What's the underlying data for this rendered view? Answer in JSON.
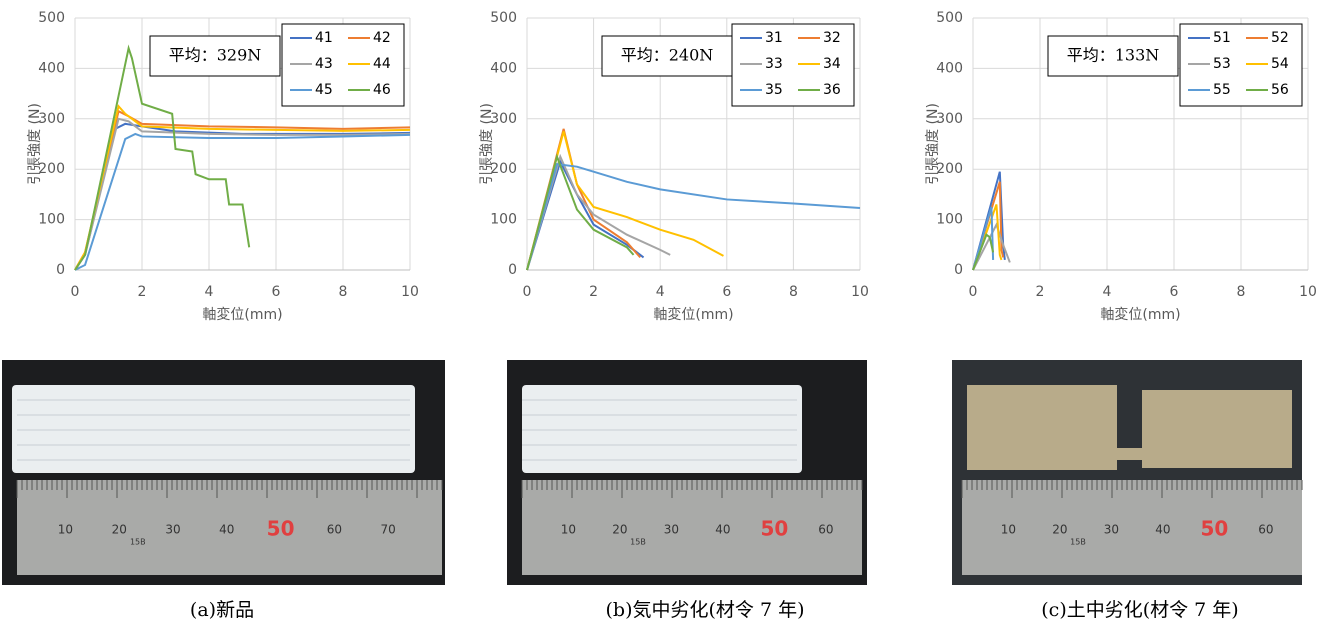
{
  "chart_data": [
    {
      "type": "line",
      "annotation": "平均：329N",
      "x_label": "軸変位(mm)",
      "y_label": "引張強度 (N)",
      "xlim": [
        0,
        10
      ],
      "ylim": [
        0,
        500
      ],
      "xticks": [
        0,
        2,
        4,
        6,
        8,
        10
      ],
      "yticks": [
        0,
        100,
        200,
        300,
        400,
        500
      ],
      "grid": true,
      "series": [
        {
          "name": "41",
          "color": "#4472c4",
          "x": [
            0,
            0.3,
            1.2,
            1.5,
            2,
            3,
            5,
            8,
            10
          ],
          "values": [
            0,
            30,
            280,
            290,
            285,
            275,
            270,
            270,
            272
          ]
        },
        {
          "name": "42",
          "color": "#ed7d31",
          "x": [
            0,
            0.3,
            1.3,
            1.6,
            2,
            4,
            6,
            8,
            10
          ],
          "values": [
            0,
            35,
            315,
            305,
            290,
            285,
            283,
            280,
            283
          ]
        },
        {
          "name": "43",
          "color": "#a5a5a5",
          "x": [
            0,
            0.3,
            1.3,
            1.6,
            2,
            4,
            6,
            8,
            10
          ],
          "values": [
            0,
            30,
            300,
            295,
            275,
            270,
            268,
            268,
            270
          ]
        },
        {
          "name": "44",
          "color": "#ffc000",
          "x": [
            0,
            0.3,
            1.3,
            1.5,
            2,
            4,
            6,
            8,
            10
          ],
          "values": [
            0,
            35,
            325,
            310,
            285,
            280,
            278,
            276,
            278
          ]
        },
        {
          "name": "45",
          "color": "#5b9bd5",
          "x": [
            0,
            0.3,
            1.5,
            1.8,
            2,
            4,
            6,
            8,
            10
          ],
          "values": [
            0,
            10,
            260,
            270,
            265,
            262,
            262,
            265,
            268
          ]
        },
        {
          "name": "46",
          "color": "#70ad47",
          "x": [
            0,
            0.3,
            1.6,
            1.7,
            2,
            2.9,
            3,
            3.5,
            3.6,
            4,
            4.5,
            4.6,
            5,
            5.2
          ],
          "values": [
            0,
            30,
            440,
            420,
            330,
            310,
            240,
            235,
            190,
            180,
            180,
            130,
            130,
            45
          ]
        }
      ]
    },
    {
      "type": "line",
      "annotation": "平均：240N",
      "x_label": "軸変位(mm)",
      "y_label": "引張強度 (N)",
      "xlim": [
        0,
        10
      ],
      "ylim": [
        0,
        500
      ],
      "xticks": [
        0,
        2,
        4,
        6,
        8,
        10
      ],
      "yticks": [
        0,
        100,
        200,
        300,
        400,
        500
      ],
      "grid": true,
      "series": [
        {
          "name": "31",
          "color": "#4472c4",
          "x": [
            0,
            1,
            1.5,
            2,
            3,
            3.5
          ],
          "values": [
            0,
            215,
            150,
            90,
            50,
            25
          ]
        },
        {
          "name": "32",
          "color": "#ed7d31",
          "x": [
            0,
            1.1,
            1.5,
            2,
            3,
            3.4
          ],
          "values": [
            0,
            280,
            170,
            100,
            55,
            25
          ]
        },
        {
          "name": "33",
          "color": "#a5a5a5",
          "x": [
            0,
            1,
            1.5,
            2,
            3,
            4,
            4.3
          ],
          "values": [
            0,
            225,
            150,
            110,
            70,
            40,
            30
          ]
        },
        {
          "name": "34",
          "color": "#ffc000",
          "x": [
            0,
            1.1,
            1.5,
            2,
            3,
            4,
            5,
            5.9
          ],
          "values": [
            0,
            275,
            170,
            125,
            105,
            80,
            60,
            28
          ]
        },
        {
          "name": "35",
          "color": "#5b9bd5",
          "x": [
            0,
            0.9,
            1.5,
            2,
            3,
            4,
            6,
            8,
            10
          ],
          "values": [
            0,
            210,
            205,
            195,
            175,
            160,
            140,
            132,
            123
          ]
        },
        {
          "name": "36",
          "color": "#70ad47",
          "x": [
            0,
            0.9,
            1.5,
            2,
            3,
            3.2
          ],
          "values": [
            0,
            225,
            120,
            80,
            45,
            30
          ]
        }
      ]
    },
    {
      "type": "line",
      "annotation": "平均：133N",
      "x_label": "軸変位(mm)",
      "y_label": "引張強度 (N)",
      "xlim": [
        0,
        10
      ],
      "ylim": [
        0,
        500
      ],
      "xticks": [
        0,
        2,
        4,
        6,
        8,
        10
      ],
      "yticks": [
        0,
        100,
        200,
        300,
        400,
        500
      ],
      "grid": true,
      "series": [
        {
          "name": "51",
          "color": "#4472c4",
          "x": [
            0,
            0.8,
            0.9,
            0.95
          ],
          "values": [
            0,
            195,
            50,
            20
          ]
        },
        {
          "name": "52",
          "color": "#ed7d31",
          "x": [
            0,
            0.8,
            0.85,
            0.9
          ],
          "values": [
            0,
            175,
            40,
            25
          ]
        },
        {
          "name": "53",
          "color": "#a5a5a5",
          "x": [
            0,
            0.7,
            0.9,
            1.1
          ],
          "values": [
            0,
            90,
            50,
            15
          ]
        },
        {
          "name": "54",
          "color": "#ffc000",
          "x": [
            0,
            0.7,
            0.8,
            0.85
          ],
          "values": [
            0,
            130,
            30,
            20
          ]
        },
        {
          "name": "55",
          "color": "#5b9bd5",
          "x": [
            0,
            0.55,
            0.6
          ],
          "values": [
            0,
            125,
            20
          ]
        },
        {
          "name": "56",
          "color": "#70ad47",
          "x": [
            0,
            0.4,
            0.5,
            0.6
          ],
          "values": [
            0,
            70,
            65,
            35
          ]
        }
      ]
    }
  ],
  "photos": [
    {
      "ruler_labels": [
        "10",
        "20",
        "30",
        "40",
        "50",
        "60",
        "70"
      ],
      "ruler_mark": "15B"
    },
    {
      "ruler_labels": [
        "10",
        "20",
        "30",
        "40",
        "50",
        "60"
      ],
      "ruler_mark": "15B"
    },
    {
      "ruler_labels": [
        "10",
        "20",
        "30",
        "40",
        "50",
        "60"
      ],
      "ruler_mark": "15B"
    }
  ],
  "captions": [
    "(a)新品",
    "(b)気中劣化(材令 7 年)",
    "(c)土中劣化(材令 7 年)"
  ]
}
